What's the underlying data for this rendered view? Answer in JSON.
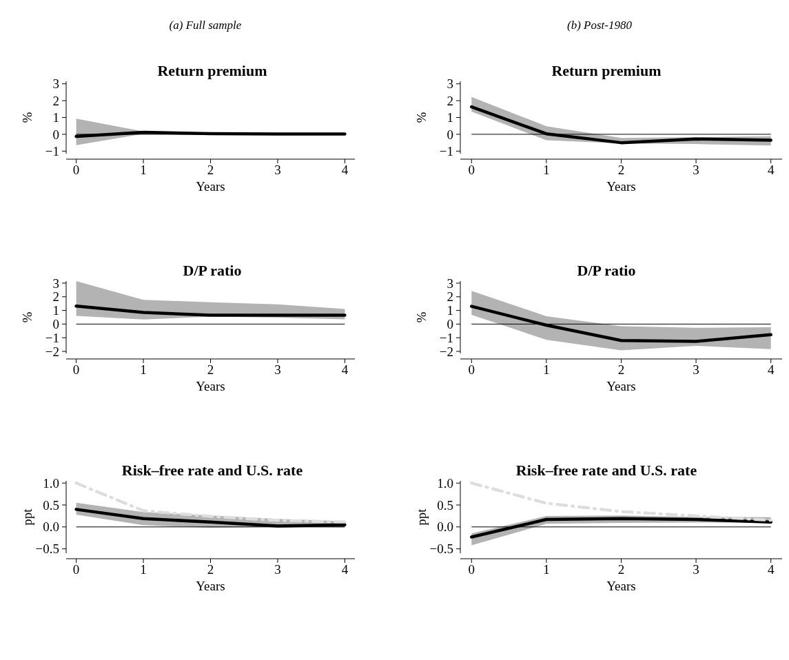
{
  "chart_data": [
    {
      "type": "line",
      "annotations": [
        "(a) Full sample"
      ],
      "title": "Return premium",
      "xlabel": "Years",
      "ylabel": "%",
      "x": [
        0,
        1,
        2,
        3,
        4
      ],
      "xlim": [
        -0.15,
        4.15
      ],
      "xticks": [
        0,
        1,
        2,
        3,
        4
      ],
      "ylim": [
        -1.15,
        3.15
      ],
      "yticks": [
        {
          "value": -1,
          "label": "−1"
        },
        0,
        1,
        2,
        3
      ],
      "ref_lines": [
        {
          "axis": "y",
          "value": 0,
          "color": "#000000"
        }
      ],
      "series": [
        {
          "color": "#000000",
          "values": [
            -0.13,
            0.12,
            0.04,
            0.02,
            0.02
          ],
          "lower": [
            -0.65,
            0.03,
            0.02,
            0.01,
            0.01
          ],
          "upper": [
            0.93,
            0.17,
            0.1,
            0.05,
            0.03
          ]
        }
      ]
    },
    {
      "type": "line",
      "annotations": [
        "(b) Post-1980"
      ],
      "title": "Return premium",
      "xlabel": "Years",
      "ylabel": "%",
      "x": [
        0,
        1,
        2,
        3,
        4
      ],
      "xlim": [
        -0.15,
        4.15
      ],
      "xticks": [
        0,
        1,
        2,
        3,
        4
      ],
      "ylim": [
        -1.15,
        3.15
      ],
      "yticks": [
        {
          "value": -1,
          "label": "−1"
        },
        0,
        1,
        2,
        3
      ],
      "ref_lines": [
        {
          "axis": "y",
          "value": 0,
          "color": "#000000"
        }
      ],
      "series": [
        {
          "color": "#000000",
          "values": [
            1.63,
            0.03,
            -0.5,
            -0.28,
            -0.35
          ],
          "lower": [
            1.35,
            -0.35,
            -0.55,
            -0.58,
            -0.67
          ],
          "upper": [
            2.22,
            0.48,
            -0.22,
            -0.17,
            -0.12
          ]
        }
      ]
    },
    {
      "type": "line",
      "title": "D/P ratio",
      "xlabel": "Years",
      "ylabel": "%",
      "x": [
        0,
        1,
        2,
        3,
        4
      ],
      "xlim": [
        -0.15,
        4.15
      ],
      "xticks": [
        0,
        1,
        2,
        3,
        4
      ],
      "ylim": [
        -2.15,
        3.15
      ],
      "yticks": [
        {
          "value": -2,
          "label": "−2"
        },
        {
          "value": -1,
          "label": "−1"
        },
        0,
        1,
        2,
        3
      ],
      "ref_lines": [
        {
          "axis": "y",
          "value": 0,
          "color": "#000000"
        }
      ],
      "series": [
        {
          "color": "#000000",
          "values": [
            1.32,
            0.85,
            0.65,
            0.65,
            0.65
          ],
          "lower": [
            0.6,
            0.33,
            0.55,
            0.47,
            0.35
          ],
          "upper": [
            3.15,
            1.78,
            1.6,
            1.45,
            1.1
          ]
        }
      ]
    },
    {
      "type": "line",
      "title": "D/P ratio",
      "xlabel": "Years",
      "ylabel": "%",
      "x": [
        0,
        1,
        2,
        3,
        4
      ],
      "xlim": [
        -0.15,
        4.15
      ],
      "xticks": [
        0,
        1,
        2,
        3,
        4
      ],
      "ylim": [
        -2.15,
        3.15
      ],
      "yticks": [
        {
          "value": -2,
          "label": "−2"
        },
        {
          "value": -1,
          "label": "−1"
        },
        0,
        1,
        2,
        3
      ],
      "ref_lines": [
        {
          "axis": "y",
          "value": 0,
          "color": "#000000"
        }
      ],
      "series": [
        {
          "color": "#000000",
          "values": [
            1.3,
            -0.08,
            -1.2,
            -1.27,
            -0.78
          ],
          "lower": [
            0.68,
            -1.15,
            -1.92,
            -1.6,
            -1.83
          ],
          "upper": [
            2.43,
            0.58,
            -0.15,
            -0.27,
            -0.23
          ]
        }
      ]
    },
    {
      "type": "line",
      "title": "Risk–free rate and U.S. rate",
      "xlabel": "Years",
      "ylabel": "ppt",
      "x": [
        0,
        1,
        2,
        3,
        4
      ],
      "xlim": [
        -0.15,
        4.15
      ],
      "xticks": [
        0,
        1,
        2,
        3,
        4
      ],
      "ylim": [
        -0.6,
        1.05
      ],
      "yticks": [
        {
          "value": -0.5,
          "label": "−0.5"
        },
        {
          "value": 0,
          "label": "0.0"
        },
        0.5,
        {
          "value": 1,
          "label": "1.0"
        }
      ],
      "ref_lines": [
        {
          "axis": "y",
          "value": 0,
          "color": "#000000"
        }
      ],
      "series": [
        {
          "color": "#000000",
          "values": [
            0.4,
            0.19,
            0.11,
            0.02,
            0.05
          ],
          "lower": [
            0.28,
            0.04,
            -0.02,
            0.0,
            -0.01
          ],
          "upper": [
            0.55,
            0.34,
            0.26,
            0.18,
            0.13
          ]
        },
        {
          "color": "#dddddd",
          "line_style": "dashed",
          "values": [
            1.0,
            0.37,
            0.24,
            0.15,
            0.11
          ]
        }
      ]
    },
    {
      "type": "line",
      "title": "Risk–free rate and U.S. rate",
      "xlabel": "Years",
      "ylabel": "ppt",
      "x": [
        0,
        1,
        2,
        3,
        4
      ],
      "xlim": [
        -0.15,
        4.15
      ],
      "xticks": [
        0,
        1,
        2,
        3,
        4
      ],
      "ylim": [
        -0.6,
        1.05
      ],
      "yticks": [
        {
          "value": -0.5,
          "label": "−0.5"
        },
        {
          "value": 0,
          "label": "0.0"
        },
        0.5,
        {
          "value": 1,
          "label": "1.0"
        }
      ],
      "ref_lines": [
        {
          "axis": "y",
          "value": 0,
          "color": "#000000"
        }
      ],
      "series": [
        {
          "color": "#000000",
          "values": [
            -0.23,
            0.17,
            0.19,
            0.17,
            0.11
          ],
          "lower": [
            -0.42,
            0.07,
            0.09,
            0.1,
            0.1
          ],
          "upper": [
            -0.15,
            0.25,
            0.26,
            0.23,
            0.22
          ]
        },
        {
          "color": "#dddddd",
          "line_style": "dashed",
          "values": [
            1.0,
            0.54,
            0.35,
            0.25,
            0.15
          ]
        }
      ]
    }
  ]
}
